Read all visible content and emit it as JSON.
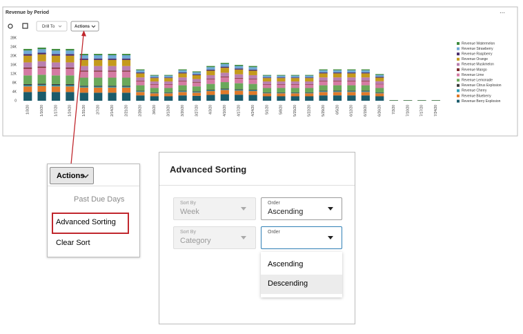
{
  "panel": {
    "title": "Revenue by Period",
    "drill_to": "Drill To",
    "actions": "Actions"
  },
  "chart_data": {
    "type": "stacked_bar",
    "categories": [
      "1/3/20",
      "1/10/20",
      "1/17/20",
      "1/24/20",
      "1/31/20",
      "2/7/20",
      "2/14/20",
      "2/21/20",
      "2/28/20",
      "3/6/20",
      "3/13/20",
      "3/20/20",
      "3/27/20",
      "4/3/20",
      "4/10/20",
      "4/17/20",
      "4/24/20",
      "5/1/20",
      "5/8/20",
      "5/15/20",
      "5/22/20",
      "5/29/20",
      "6/5/20",
      "6/12/20",
      "6/19/20",
      "6/26/20",
      "7/3/20",
      "7/10/20",
      "7/17/20",
      "7/24/20"
    ],
    "ylim": [
      0,
      28000
    ],
    "yticks": [
      0,
      {
        "value": 4000,
        "label": "4K"
      },
      {
        "value": 8000,
        "label": "8K"
      },
      {
        "value": 12000,
        "label": "12K"
      },
      {
        "value": 16000,
        "label": "16K"
      },
      {
        "value": 20000,
        "label": "20K"
      },
      {
        "value": 24000,
        "label": "24K"
      },
      {
        "value": 28000,
        "label": "28K"
      }
    ],
    "grid": false,
    "series": [
      {
        "name": "Revenue Watermelon",
        "color": "#3d8b3d",
        "values": [
          700,
          700,
          700,
          700,
          600,
          600,
          600,
          600,
          400,
          300,
          300,
          400,
          400,
          500,
          500,
          500,
          500,
          300,
          300,
          300,
          300,
          400,
          400,
          400,
          400,
          400,
          0,
          0,
          0,
          0
        ]
      },
      {
        "name": "Revenue Strawberry",
        "color": "#6fa9d6",
        "values": [
          1600,
          1600,
          1600,
          1600,
          1500,
          1500,
          1500,
          1500,
          1000,
          800,
          800,
          1000,
          900,
          1100,
          1200,
          1100,
          1100,
          800,
          800,
          800,
          800,
          1000,
          1000,
          1000,
          1000,
          800,
          0,
          0,
          0,
          0
        ]
      },
      {
        "name": "Revenue Raspberry",
        "color": "#4a2b6b",
        "values": [
          700,
          700,
          700,
          700,
          600,
          600,
          600,
          600,
          400,
          300,
          300,
          400,
          400,
          500,
          500,
          500,
          500,
          300,
          300,
          300,
          300,
          400,
          400,
          400,
          400,
          400,
          0,
          0,
          0,
          0
        ]
      },
      {
        "name": "Revenue Orange",
        "color": "#c49a1c",
        "values": [
          3000,
          3100,
          3000,
          3000,
          2700,
          2700,
          2700,
          2700,
          1800,
          1500,
          1500,
          1800,
          1700,
          2000,
          2200,
          2100,
          2000,
          1500,
          1500,
          1500,
          1500,
          1800,
          1800,
          1800,
          1800,
          1600,
          0,
          0,
          0,
          0
        ]
      },
      {
        "name": "Revenue Muskmelon",
        "color": "#b97fb0",
        "values": [
          2300,
          2400,
          2300,
          2300,
          2100,
          2100,
          2100,
          2100,
          1400,
          1200,
          1200,
          1400,
          1300,
          1600,
          1700,
          1600,
          1600,
          1200,
          1200,
          1200,
          1200,
          1400,
          1400,
          1400,
          1400,
          1200,
          0,
          0,
          0,
          0
        ]
      },
      {
        "name": "Revenue Mango",
        "color": "#7b2b2b",
        "values": [
          500,
          500,
          500,
          500,
          400,
          400,
          400,
          400,
          300,
          200,
          200,
          300,
          300,
          300,
          300,
          300,
          300,
          200,
          200,
          200,
          200,
          300,
          300,
          300,
          300,
          200,
          0,
          0,
          0,
          0
        ]
      },
      {
        "name": "Revenue Lime",
        "color": "#d47ba3",
        "values": [
          3000,
          3100,
          3000,
          3000,
          2700,
          2700,
          2700,
          2700,
          1800,
          1500,
          1500,
          1800,
          1700,
          2000,
          2200,
          2100,
          2000,
          1500,
          1500,
          1500,
          1500,
          1800,
          1800,
          1800,
          1800,
          1600,
          0,
          0,
          0,
          0
        ]
      },
      {
        "name": "Revenue Lemonade",
        "color": "#6aa85a",
        "values": [
          3900,
          4000,
          3900,
          3900,
          3600,
          3600,
          3600,
          3600,
          2400,
          2000,
          2000,
          2400,
          2200,
          2600,
          2900,
          2700,
          2600,
          2000,
          2000,
          2000,
          2000,
          2400,
          2400,
          2400,
          2400,
          2000,
          0,
          0,
          0,
          0
        ]
      },
      {
        "name": "Revenue Citrus Explosion",
        "color": "#3a3a3a",
        "values": [
          500,
          500,
          500,
          500,
          400,
          400,
          400,
          400,
          300,
          200,
          200,
          300,
          300,
          300,
          300,
          300,
          300,
          200,
          200,
          200,
          200,
          300,
          300,
          300,
          300,
          200,
          0,
          0,
          0,
          0
        ]
      },
      {
        "name": "Revenue Cherry",
        "color": "#2b9bb3",
        "values": [
          500,
          500,
          500,
          500,
          400,
          400,
          400,
          400,
          300,
          200,
          200,
          300,
          300,
          300,
          300,
          300,
          300,
          200,
          200,
          200,
          200,
          300,
          300,
          300,
          300,
          200,
          0,
          0,
          0,
          0
        ]
      },
      {
        "name": "Revenue Blueberry",
        "color": "#e0792a",
        "values": [
          2500,
          2600,
          2500,
          2500,
          2300,
          2300,
          2300,
          2300,
          1500,
          1300,
          1300,
          1500,
          1400,
          1700,
          1900,
          1800,
          1700,
          1300,
          1300,
          1300,
          1300,
          1500,
          1500,
          1500,
          1500,
          1300,
          0,
          0,
          0,
          0
        ]
      },
      {
        "name": "Revenue Berry Explosion",
        "color": "#1b5b6b",
        "values": [
          3900,
          4000,
          3900,
          3900,
          3600,
          3600,
          3600,
          3600,
          2400,
          2000,
          2000,
          2400,
          2200,
          2600,
          2900,
          2700,
          2600,
          2000,
          2000,
          2000,
          2000,
          2400,
          2400,
          2400,
          2400,
          2000,
          200,
          200,
          200,
          200
        ]
      }
    ]
  },
  "actions_menu": {
    "button": "Actions",
    "items": [
      "Past Due Days",
      "Advanced Sorting",
      "Clear Sort"
    ]
  },
  "dialog": {
    "title": "Advanced Sorting",
    "rows": [
      {
        "sort_by_label": "Sort By",
        "sort_by_value": "Week",
        "order_label": "Order",
        "order_value": "Ascending"
      },
      {
        "sort_by_label": "Sort By",
        "sort_by_value": "Category",
        "order_label": "Order"
      }
    ],
    "order_options": [
      "Ascending",
      "Descending"
    ]
  }
}
